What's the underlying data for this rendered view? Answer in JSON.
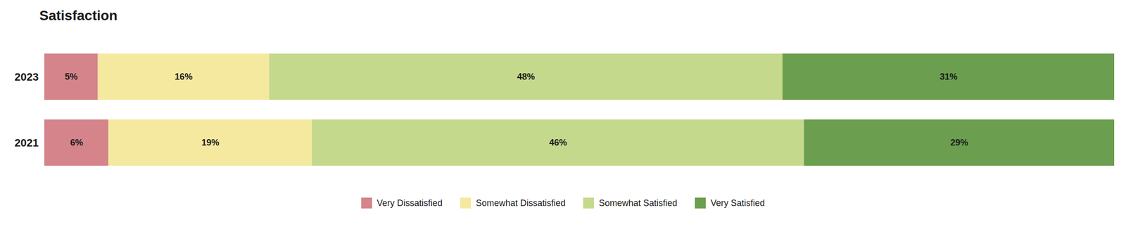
{
  "chart_data": {
    "type": "bar",
    "orientation": "horizontal",
    "stacked": true,
    "title": "Satisfaction",
    "categories": [
      "2023",
      "2021"
    ],
    "series": [
      {
        "name": "Very Dissatisfied",
        "color": "#d4848a",
        "values": [
          5,
          6
        ],
        "value_labels": [
          "5%",
          "6%"
        ]
      },
      {
        "name": "Somewhat Dissatisfied",
        "color": "#f5e9a0",
        "values": [
          16,
          19
        ],
        "value_labels": [
          "16%",
          "19%"
        ]
      },
      {
        "name": "Somewhat Satisfied",
        "color": "#c5d98d",
        "values": [
          48,
          46
        ],
        "value_labels": [
          "48%",
          "46%"
        ]
      },
      {
        "name": "Very Satisfied",
        "color": "#6b9e4e",
        "values": [
          31,
          29
        ],
        "value_labels": [
          "31%",
          "29%"
        ]
      }
    ],
    "xlim": [
      0,
      100
    ],
    "data_labels": true,
    "tick_labels": "y",
    "grid": false,
    "legend": "bottom"
  }
}
